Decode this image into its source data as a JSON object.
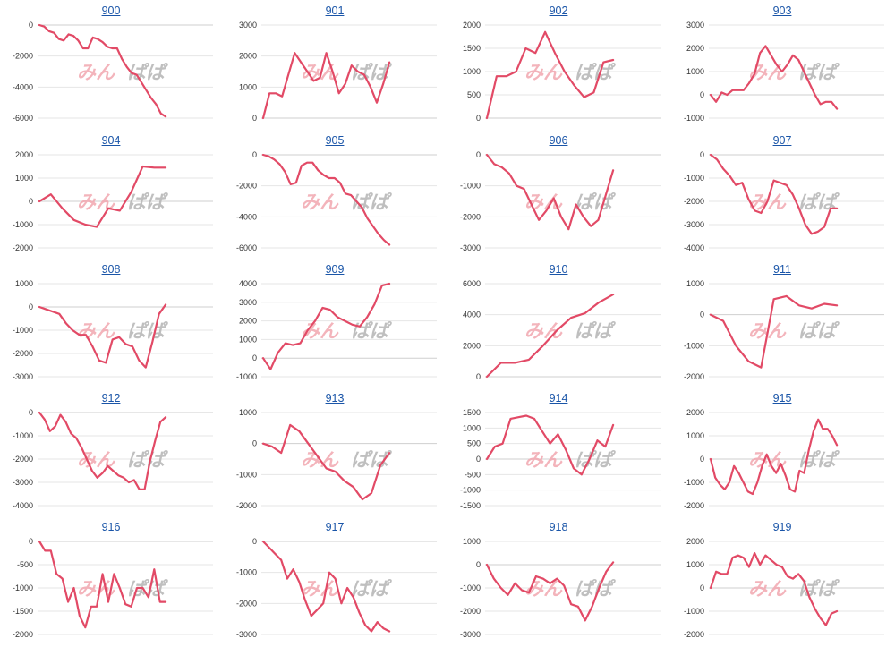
{
  "watermark": {
    "part1": "みん",
    "part2": "ぱぱ"
  },
  "chart_data": [
    {
      "type": "line",
      "title": "900",
      "yticks": [
        0,
        -2000,
        -4000,
        -6000
      ],
      "ylim": [
        -6000,
        0
      ],
      "values": [
        0,
        -100,
        -400,
        -500,
        -900,
        -1000,
        -600,
        -700,
        -1000,
        -1500,
        -1500,
        -800,
        -900,
        -1100,
        -1400,
        -1500,
        -1500,
        -2200,
        -2700,
        -3100,
        -3200,
        -3700,
        -4200,
        -4700,
        -5100,
        -5700,
        -5900
      ]
    },
    {
      "type": "line",
      "title": "901",
      "yticks": [
        3000,
        2000,
        1000,
        0
      ],
      "ylim": [
        0,
        3000
      ],
      "values": [
        0,
        800,
        800,
        700,
        1400,
        2100,
        1800,
        1500,
        1200,
        1300,
        2100,
        1500,
        800,
        1100,
        1700,
        1500,
        1400,
        1000,
        500,
        1100,
        1800
      ]
    },
    {
      "type": "line",
      "title": "902",
      "yticks": [
        2000,
        1500,
        1000,
        500,
        0
      ],
      "ylim": [
        0,
        2000
      ],
      "values": [
        0,
        900,
        900,
        1000,
        1500,
        1400,
        1850,
        1400,
        1000,
        700,
        450,
        550,
        1200,
        1250
      ]
    },
    {
      "type": "line",
      "title": "903",
      "yticks": [
        3000,
        2000,
        1000,
        0,
        -1000
      ],
      "ylim": [
        -1000,
        3000
      ],
      "values": [
        0,
        -300,
        100,
        0,
        200,
        200,
        200,
        500,
        900,
        1800,
        2100,
        1700,
        1300,
        1000,
        1300,
        1700,
        1500,
        1000,
        500,
        0,
        -400,
        -300,
        -300,
        -600
      ]
    },
    {
      "type": "line",
      "title": "904",
      "yticks": [
        2000,
        1000,
        0,
        -1000,
        -2000
      ],
      "ylim": [
        -2000,
        2000
      ],
      "values": [
        0,
        300,
        -300,
        -800,
        -1000,
        -1100,
        -300,
        -400,
        400,
        1500,
        1450,
        1450
      ]
    },
    {
      "type": "line",
      "title": "905",
      "yticks": [
        0,
        -2000,
        -4000,
        -6000
      ],
      "ylim": [
        -6000,
        0
      ],
      "values": [
        0,
        -100,
        -300,
        -600,
        -1100,
        -1900,
        -1800,
        -700,
        -500,
        -500,
        -1000,
        -1300,
        -1500,
        -1500,
        -1800,
        -2500,
        -2600,
        -3000,
        -3400,
        -4100,
        -4600,
        -5100,
        -5500,
        -5800
      ]
    },
    {
      "type": "line",
      "title": "906",
      "yticks": [
        0,
        -1000,
        -2000,
        -3000
      ],
      "ylim": [
        -3000,
        0
      ],
      "values": [
        0,
        -300,
        -400,
        -600,
        -1000,
        -1100,
        -1600,
        -2100,
        -1800,
        -1400,
        -2000,
        -2400,
        -1600,
        -2000,
        -2300,
        -2100,
        -1300,
        -500
      ]
    },
    {
      "type": "line",
      "title": "907",
      "yticks": [
        0,
        -1000,
        -2000,
        -3000,
        -4000
      ],
      "ylim": [
        -4000,
        0
      ],
      "values": [
        0,
        -200,
        -600,
        -900,
        -1300,
        -1200,
        -1900,
        -2400,
        -2500,
        -2000,
        -1100,
        -1200,
        -1300,
        -1700,
        -2300,
        -3000,
        -3400,
        -3300,
        -3100,
        -2300,
        -2300
      ]
    },
    {
      "type": "line",
      "title": "908",
      "yticks": [
        1000,
        0,
        -1000,
        -2000,
        -3000
      ],
      "ylim": [
        -3000,
        1000
      ],
      "values": [
        0,
        -100,
        -200,
        -300,
        -700,
        -1000,
        -1200,
        -1200,
        -1700,
        -2300,
        -2400,
        -1400,
        -1300,
        -1600,
        -1700,
        -2300,
        -2600,
        -1500,
        -300,
        100
      ]
    },
    {
      "type": "line",
      "title": "909",
      "yticks": [
        4000,
        3000,
        2000,
        1000,
        0,
        -1000
      ],
      "ylim": [
        -1000,
        4000
      ],
      "values": [
        0,
        -600,
        300,
        800,
        700,
        800,
        1500,
        2000,
        2700,
        2600,
        2200,
        2000,
        1800,
        1700,
        2200,
        2900,
        3900,
        4000
      ]
    },
    {
      "type": "line",
      "title": "910",
      "yticks": [
        6000,
        4000,
        2000,
        0
      ],
      "ylim": [
        0,
        6000
      ],
      "values": [
        0,
        900,
        900,
        1100,
        2000,
        3000,
        3800,
        4100,
        4800,
        5300
      ]
    },
    {
      "type": "line",
      "title": "911",
      "yticks": [
        1000,
        0,
        -1000,
        -2000
      ],
      "ylim": [
        -2000,
        1000
      ],
      "values": [
        0,
        -200,
        -1000,
        -1500,
        -1700,
        500,
        600,
        300,
        200,
        350,
        300
      ]
    },
    {
      "type": "line",
      "title": "912",
      "yticks": [
        0,
        -1000,
        -2000,
        -3000,
        -4000
      ],
      "ylim": [
        -4000,
        0
      ],
      "values": [
        0,
        -300,
        -800,
        -600,
        -100,
        -400,
        -900,
        -1100,
        -1500,
        -2000,
        -2500,
        -2800,
        -2600,
        -2300,
        -2500,
        -2700,
        -2800,
        -3000,
        -2900,
        -3300,
        -3300,
        -2100,
        -1200,
        -400,
        -200
      ]
    },
    {
      "type": "line",
      "title": "913",
      "yticks": [
        1000,
        0,
        -1000,
        -2000
      ],
      "ylim": [
        -2000,
        1000
      ],
      "values": [
        0,
        -100,
        -300,
        600,
        400,
        0,
        -400,
        -800,
        -900,
        -1200,
        -1400,
        -1800,
        -1600,
        -700,
        -300
      ]
    },
    {
      "type": "line",
      "title": "914",
      "yticks": [
        1500,
        1000,
        500,
        0,
        -500,
        -1000,
        -1500
      ],
      "ylim": [
        -1500,
        1500
      ],
      "values": [
        0,
        400,
        500,
        1300,
        1350,
        1400,
        1300,
        900,
        500,
        800,
        300,
        -300,
        -500,
        0,
        600,
        400,
        1100
      ]
    },
    {
      "type": "line",
      "title": "915",
      "yticks": [
        2000,
        1000,
        0,
        -1000,
        -2000
      ],
      "ylim": [
        -2000,
        2000
      ],
      "values": [
        0,
        -800,
        -1100,
        -1300,
        -1000,
        -300,
        -600,
        -1000,
        -1400,
        -1500,
        -1000,
        -300,
        200,
        -300,
        -600,
        -200,
        -700,
        -1300,
        -1400,
        -500,
        -600,
        400,
        1200,
        1700,
        1300,
        1300,
        1000,
        600
      ]
    },
    {
      "type": "line",
      "title": "916",
      "yticks": [
        0,
        -500,
        -1000,
        -1500,
        -2000
      ],
      "ylim": [
        -2000,
        0
      ],
      "values": [
        0,
        -200,
        -200,
        -700,
        -800,
        -1300,
        -1000,
        -1600,
        -1850,
        -1400,
        -1400,
        -700,
        -1300,
        -700,
        -1000,
        -1350,
        -1400,
        -1000,
        -1000,
        -1200,
        -600,
        -1300,
        -1300
      ]
    },
    {
      "type": "line",
      "title": "917",
      "yticks": [
        0,
        -1000,
        -2000,
        -3000
      ],
      "ylim": [
        -3000,
        0
      ],
      "values": [
        0,
        -200,
        -400,
        -600,
        -1200,
        -900,
        -1300,
        -1900,
        -2400,
        -2200,
        -2000,
        -1000,
        -1200,
        -2000,
        -1500,
        -1800,
        -2300,
        -2700,
        -2900,
        -2600,
        -2800,
        -2900
      ]
    },
    {
      "type": "line",
      "title": "918",
      "yticks": [
        1000,
        0,
        -1000,
        -2000,
        -3000
      ],
      "ylim": [
        -3000,
        1000
      ],
      "values": [
        0,
        -600,
        -1000,
        -1300,
        -800,
        -1100,
        -1200,
        -500,
        -600,
        -800,
        -600,
        -900,
        -1700,
        -1800,
        -2400,
        -1800,
        -1000,
        -300,
        100
      ]
    },
    {
      "type": "line",
      "title": "919",
      "yticks": [
        2000,
        1000,
        0,
        -1000,
        -2000
      ],
      "ylim": [
        -2000,
        2000
      ],
      "values": [
        0,
        700,
        600,
        600,
        1300,
        1400,
        1300,
        900,
        1500,
        1000,
        1400,
        1200,
        1000,
        900,
        500,
        400,
        600,
        300,
        -400,
        -900,
        -1300,
        -1600,
        -1100,
        -1000
      ]
    }
  ]
}
